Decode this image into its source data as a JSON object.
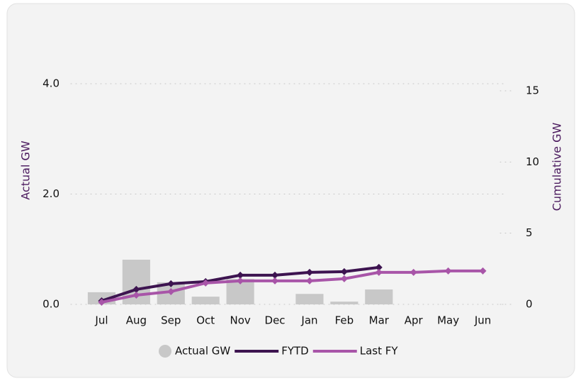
{
  "chart_data": {
    "type": "combo",
    "categories": [
      "Jul",
      "Aug",
      "Sep",
      "Oct",
      "Nov",
      "Dec",
      "Jan",
      "Feb",
      "Mar",
      "Apr",
      "May",
      "Jun"
    ],
    "y_label": "Actual GW",
    "y2_label": "Cumulative GW",
    "ylim": [
      0,
      4
    ],
    "yticks": [
      {
        "value": 0,
        "label": "0.0"
      },
      {
        "value": 2,
        "label": "2.0"
      },
      {
        "value": 4,
        "label": "4.0"
      }
    ],
    "y2lim": [
      0,
      15.5
    ],
    "y2ticks": [
      0,
      5,
      10,
      15
    ],
    "grid": true,
    "legend": "bottom",
    "series": [
      {
        "name": "Actual GW",
        "type": "bar",
        "color": "#c8c8c8",
        "values": [
          0.22,
          0.81,
          0.4,
          0.14,
          0.46,
          0,
          0.19,
          0.05,
          0.27,
          null,
          null,
          null
        ]
      },
      {
        "name": "FYTD",
        "type": "line",
        "axis": "y2",
        "color": "#3d1450",
        "values": [
          0.25,
          1.05,
          1.45,
          1.6,
          2.05,
          2.05,
          2.25,
          2.3,
          2.6,
          null,
          null,
          null
        ]
      },
      {
        "name": "Last FY",
        "type": "line",
        "axis": "y2",
        "color": "#a855a8",
        "values": [
          0.15,
          0.65,
          0.9,
          1.5,
          1.65,
          1.65,
          1.65,
          1.8,
          2.25,
          2.25,
          2.35,
          2.35
        ]
      }
    ]
  }
}
